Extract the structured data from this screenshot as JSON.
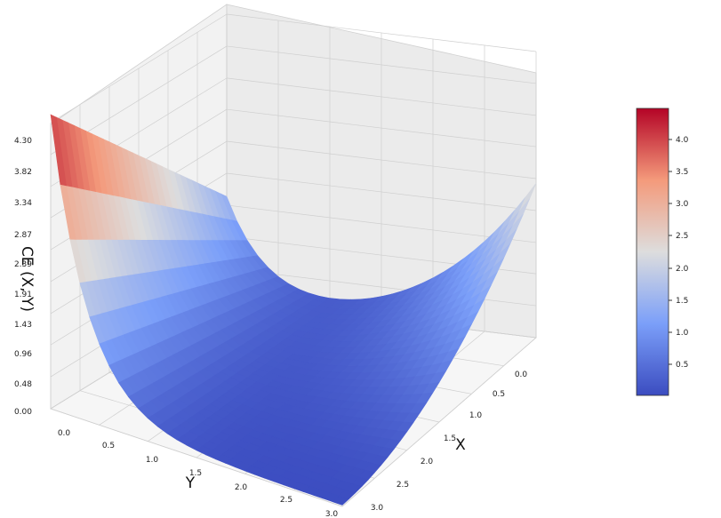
{
  "chart_data": {
    "type": "surface3d",
    "title": "",
    "xlabel": "X",
    "ylabel": "Y",
    "zlabel": "CE (X, Y)",
    "x_ticks": [
      "0.0",
      "0.5",
      "1.0",
      "1.5",
      "2.0",
      "2.5",
      "3.0"
    ],
    "y_ticks": [
      "0.0",
      "0.5",
      "1.0",
      "1.5",
      "2.0",
      "2.5",
      "3.0"
    ],
    "z_ticks": [
      "0.00",
      "0.48",
      "0.96",
      "1.43",
      "1.91",
      "2.39",
      "2.87",
      "3.34",
      "3.82",
      "4.30"
    ],
    "xlim": [
      0,
      3
    ],
    "ylim": [
      0,
      3
    ],
    "zlim": [
      0,
      4.3
    ],
    "colormap": "coolwarm",
    "colorbar": {
      "ticks": [
        "0.5",
        "1.0",
        "1.5",
        "2.0",
        "2.5",
        "3.0",
        "3.5",
        "4.0"
      ],
      "range": [
        0.0,
        4.45
      ]
    },
    "surface_samples": [
      {
        "x": 0.0,
        "y": 0.0,
        "z": 4.45
      },
      {
        "x": 0.0,
        "y": 1.5,
        "z": 0.3
      },
      {
        "x": 0.0,
        "y": 3.0,
        "z": 2.25
      },
      {
        "x": 1.5,
        "y": 0.0,
        "z": 0.35
      },
      {
        "x": 3.0,
        "y": 0.0,
        "z": 0.1
      },
      {
        "x": 3.0,
        "y": 3.0,
        "z": 0.02
      }
    ],
    "colors": {
      "low": "#3b4cc0",
      "mid": "#dddddd",
      "high": "#b40426",
      "grid": "#cfcfcf",
      "pane_left": "#f2f2f2",
      "pane_right": "#ebebeb",
      "floor": "#f6f6f6"
    }
  }
}
